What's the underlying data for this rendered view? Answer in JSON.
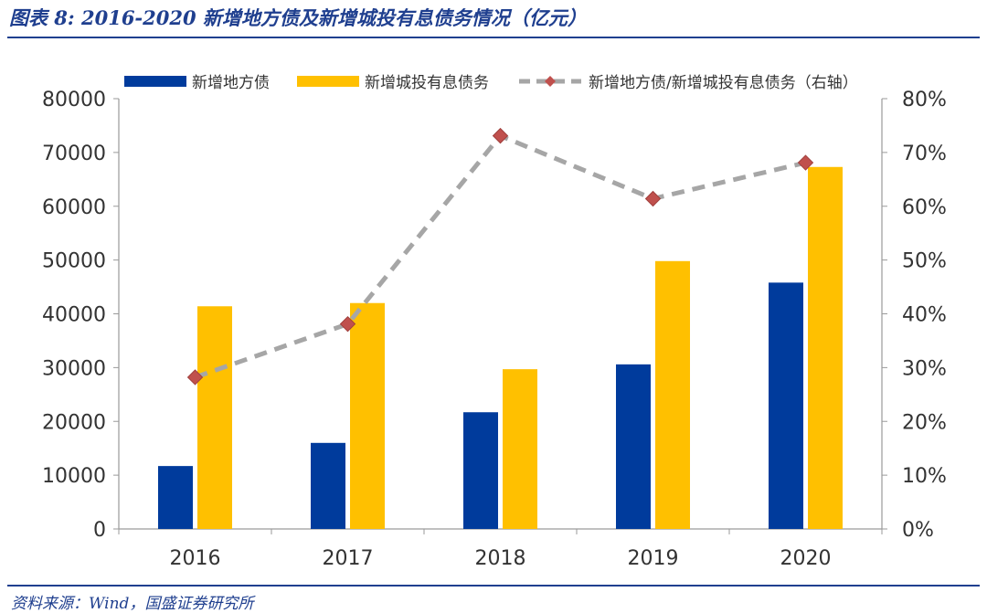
{
  "title": "图表 8:  2016-2020 新增地方债及新增城投有息债务情况（亿元）",
  "source": "资料来源：Wind，国盛证券研究所",
  "colors": {
    "bar1": "#003b9c",
    "bar2": "#ffc000",
    "line": "#a6a6a6",
    "marker": "#c0504d",
    "rule": "#1f3f8f"
  },
  "chart_data": {
    "type": "bar",
    "categories": [
      "2016",
      "2017",
      "2018",
      "2019",
      "2020"
    ],
    "series": [
      {
        "name": "新增地方债",
        "type": "bar",
        "axis": "left",
        "values": [
          11700,
          16000,
          21700,
          30600,
          45800
        ]
      },
      {
        "name": "新增城投有息债务",
        "type": "bar",
        "axis": "left",
        "values": [
          41400,
          42000,
          29700,
          49800,
          67300
        ]
      },
      {
        "name": "新增地方债/新增城投有息债务（右轴）",
        "type": "line",
        "axis": "right",
        "values": [
          28.2,
          38.1,
          73.1,
          61.4,
          68.1
        ]
      }
    ],
    "ylim": [
      0,
      80000
    ],
    "yticks": [
      "0",
      "10000",
      "20000",
      "30000",
      "40000",
      "50000",
      "60000",
      "70000",
      "80000"
    ],
    "y2lim": [
      0,
      80
    ],
    "y2ticks": [
      "0%",
      "10%",
      "20%",
      "30%",
      "40%",
      "50%",
      "60%",
      "70%",
      "80%"
    ],
    "grid": false,
    "legend": "top"
  }
}
